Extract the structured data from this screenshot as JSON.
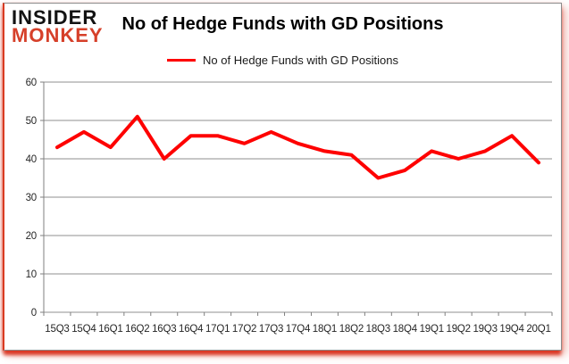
{
  "logo": {
    "line1": "INSIDER",
    "line2": "MONKEY",
    "line1_color": "#121212",
    "line2_color": "#d6402a"
  },
  "header": {
    "title": "No of Hedge Funds with GD Positions"
  },
  "legend": {
    "label": "No of Hedge Funds with GD Positions",
    "marker_color": "#fe0000",
    "position": "top-center"
  },
  "chart_data": {
    "type": "line",
    "title": "No of Hedge Funds with GD Positions",
    "series_name": "No of Hedge Funds with GD Positions",
    "categories": [
      "15Q3",
      "15Q4",
      "16Q1",
      "16Q2",
      "16Q3",
      "16Q4",
      "17Q1",
      "17Q2",
      "17Q3",
      "17Q4",
      "18Q1",
      "18Q2",
      "18Q3",
      "18Q4",
      "19Q1",
      "19Q2",
      "19Q3",
      "19Q4",
      "20Q1"
    ],
    "values": [
      43,
      47,
      43,
      51,
      40,
      46,
      46,
      44,
      47,
      44,
      42,
      41,
      35,
      37,
      42,
      40,
      42,
      46,
      39
    ],
    "xlabel": "",
    "ylabel": "",
    "ylim": [
      0,
      60
    ],
    "yticks": [
      0,
      10,
      20,
      30,
      40,
      50,
      60
    ],
    "grid": true,
    "legend_position": "top",
    "line_color": "#fe0000",
    "gridline_color": "#8f8f8f",
    "axis_color": "#7f7f7f",
    "frame_accent_color": "#d93b22"
  }
}
